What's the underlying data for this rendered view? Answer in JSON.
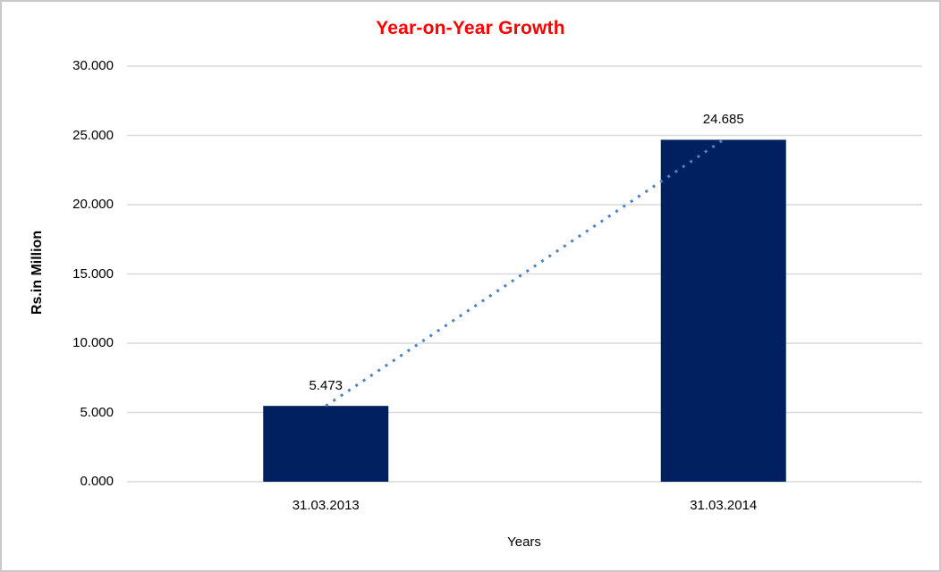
{
  "chart_data": {
    "type": "bar",
    "title": "Year-on-Year Growth",
    "title_color": "#ff0000",
    "categories": [
      "31.03.2013",
      "31.03.2014"
    ],
    "values": [
      5473,
      24685
    ],
    "data_labels": [
      "5.473",
      "24.685"
    ],
    "xlabel": "Years",
    "ylabel": "Rs.in Million",
    "ylim": [
      0,
      30000
    ],
    "ytick_step": 5000,
    "ytick_labels": [
      "0.000",
      "5.000",
      "10.000",
      "15.000",
      "20.000",
      "25.000",
      "30.000"
    ],
    "grid": "horizontal-only",
    "gridline_color": "#d9d9d9",
    "legend": "none",
    "bar_color": "#002060",
    "trendline": {
      "style": "dotted",
      "color": "#4a82c6",
      "connects": [
        "top of 31.03.2013 bar",
        "top of 31.03.2014 bar"
      ]
    },
    "border_color": "#c9c9c9",
    "background": "#ffffff"
  }
}
